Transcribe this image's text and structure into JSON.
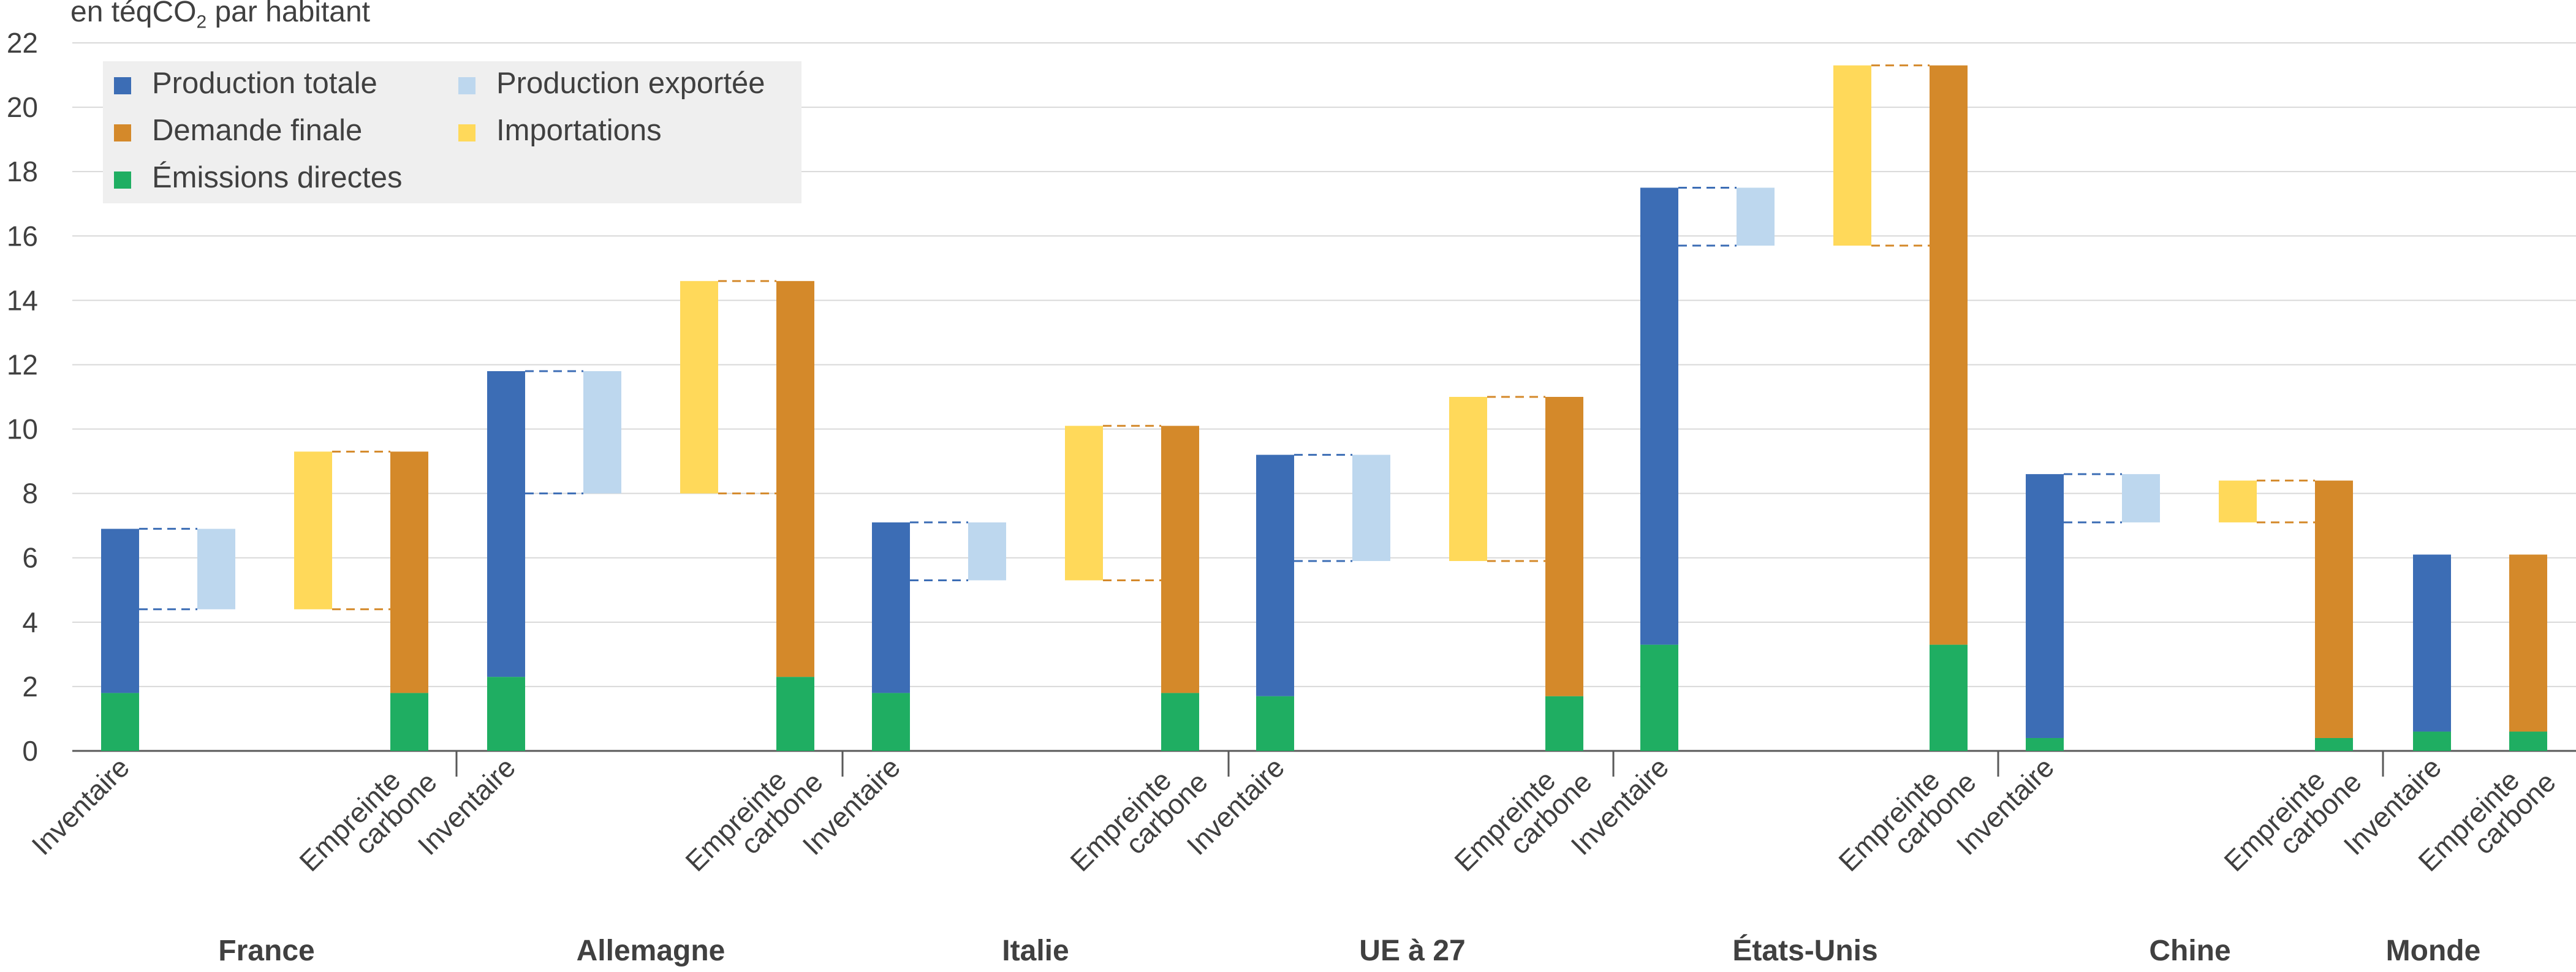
{
  "chart_data": {
    "type": "bar",
    "ylabel": "en téqCO",
    "ylabel_sub": "2",
    "ylabel_suffix": " par habitant",
    "ylim": [
      0,
      22
    ],
    "yticks": [
      0,
      2,
      4,
      6,
      8,
      10,
      12,
      14,
      16,
      18,
      20,
      22
    ],
    "grid": true,
    "legend_position": "top-left",
    "legend": [
      {
        "key": "production_totale",
        "label": "Production totale",
        "color": "#3c6db5"
      },
      {
        "key": "demande_finale",
        "label": "Demande finale",
        "color": "#d4892a"
      },
      {
        "key": "emissions_directes",
        "label": "Émissions directes",
        "color": "#1fae62"
      },
      {
        "key": "production_exportee",
        "label": "Production exportée",
        "color": "#bdd7ee"
      },
      {
        "key": "importations",
        "label": "Importations",
        "color": "#ffd95a"
      }
    ],
    "bar_labels": {
      "inventaire": "Inventaire",
      "empreinte_line1": "Empreinte",
      "empreinte_line2": "carbone"
    },
    "groups": [
      {
        "name": "France",
        "inventaire_total": 6.9,
        "emissions_directes": 1.8,
        "production_exportee": [
          4.4,
          6.9
        ],
        "importations": [
          4.4,
          9.3
        ],
        "empreinte_total": 9.3
      },
      {
        "name": "Allemagne",
        "inventaire_total": 11.8,
        "emissions_directes": 2.3,
        "production_exportee": [
          8.0,
          11.8
        ],
        "importations": [
          8.0,
          14.6
        ],
        "empreinte_total": 14.6
      },
      {
        "name": "Italie",
        "inventaire_total": 7.1,
        "emissions_directes": 1.8,
        "production_exportee": [
          5.3,
          7.1
        ],
        "importations": [
          5.3,
          10.1
        ],
        "empreinte_total": 10.1
      },
      {
        "name": "UE à 27",
        "inventaire_total": 9.2,
        "emissions_directes": 1.7,
        "production_exportee": [
          5.9,
          9.2
        ],
        "importations": [
          5.9,
          11.0
        ],
        "empreinte_total": 11.0
      },
      {
        "name": "États-Unis",
        "inventaire_total": 17.5,
        "emissions_directes": 3.3,
        "production_exportee": [
          15.7,
          17.5
        ],
        "importations": [
          15.7,
          21.3
        ],
        "empreinte_total": 21.3
      },
      {
        "name": "Chine",
        "inventaire_total": 8.6,
        "emissions_directes": 0.4,
        "production_exportee": [
          7.1,
          8.6
        ],
        "importations": [
          7.1,
          8.4
        ],
        "empreinte_total": 8.4
      },
      {
        "name": "Monde",
        "inventaire_total": 6.1,
        "emissions_directes": 0.6,
        "production_exportee": null,
        "importations": null,
        "empreinte_total": 6.1
      }
    ]
  }
}
